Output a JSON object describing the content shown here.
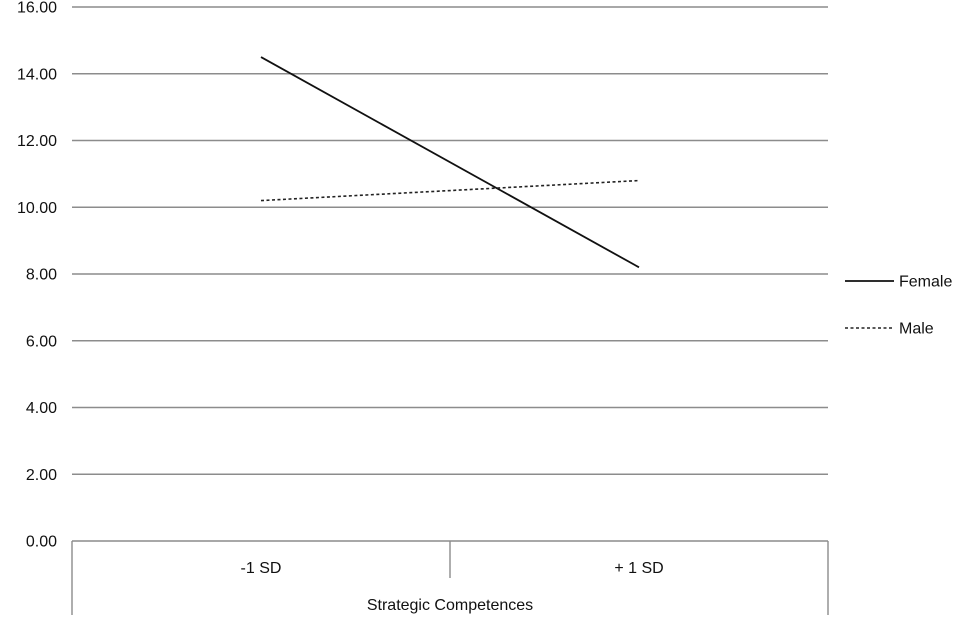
{
  "chart_data": {
    "type": "line",
    "xlabel": "Strategic Competences",
    "ylabel": "",
    "categories": [
      "-1 SD",
      "+ 1 SD"
    ],
    "ylim": [
      0,
      16
    ],
    "yticks": [
      "0.00",
      "2.00",
      "4.00",
      "6.00",
      "8.00",
      "10.00",
      "12.00",
      "14.00",
      "16.00"
    ],
    "grid": true,
    "legend_position": "right",
    "series": [
      {
        "name": "Female",
        "values": [
          14.5,
          8.2
        ],
        "style": "solid",
        "color": "#111111"
      },
      {
        "name": "Male",
        "values": [
          10.2,
          10.8
        ],
        "style": "dotted",
        "color": "#222222"
      }
    ]
  }
}
